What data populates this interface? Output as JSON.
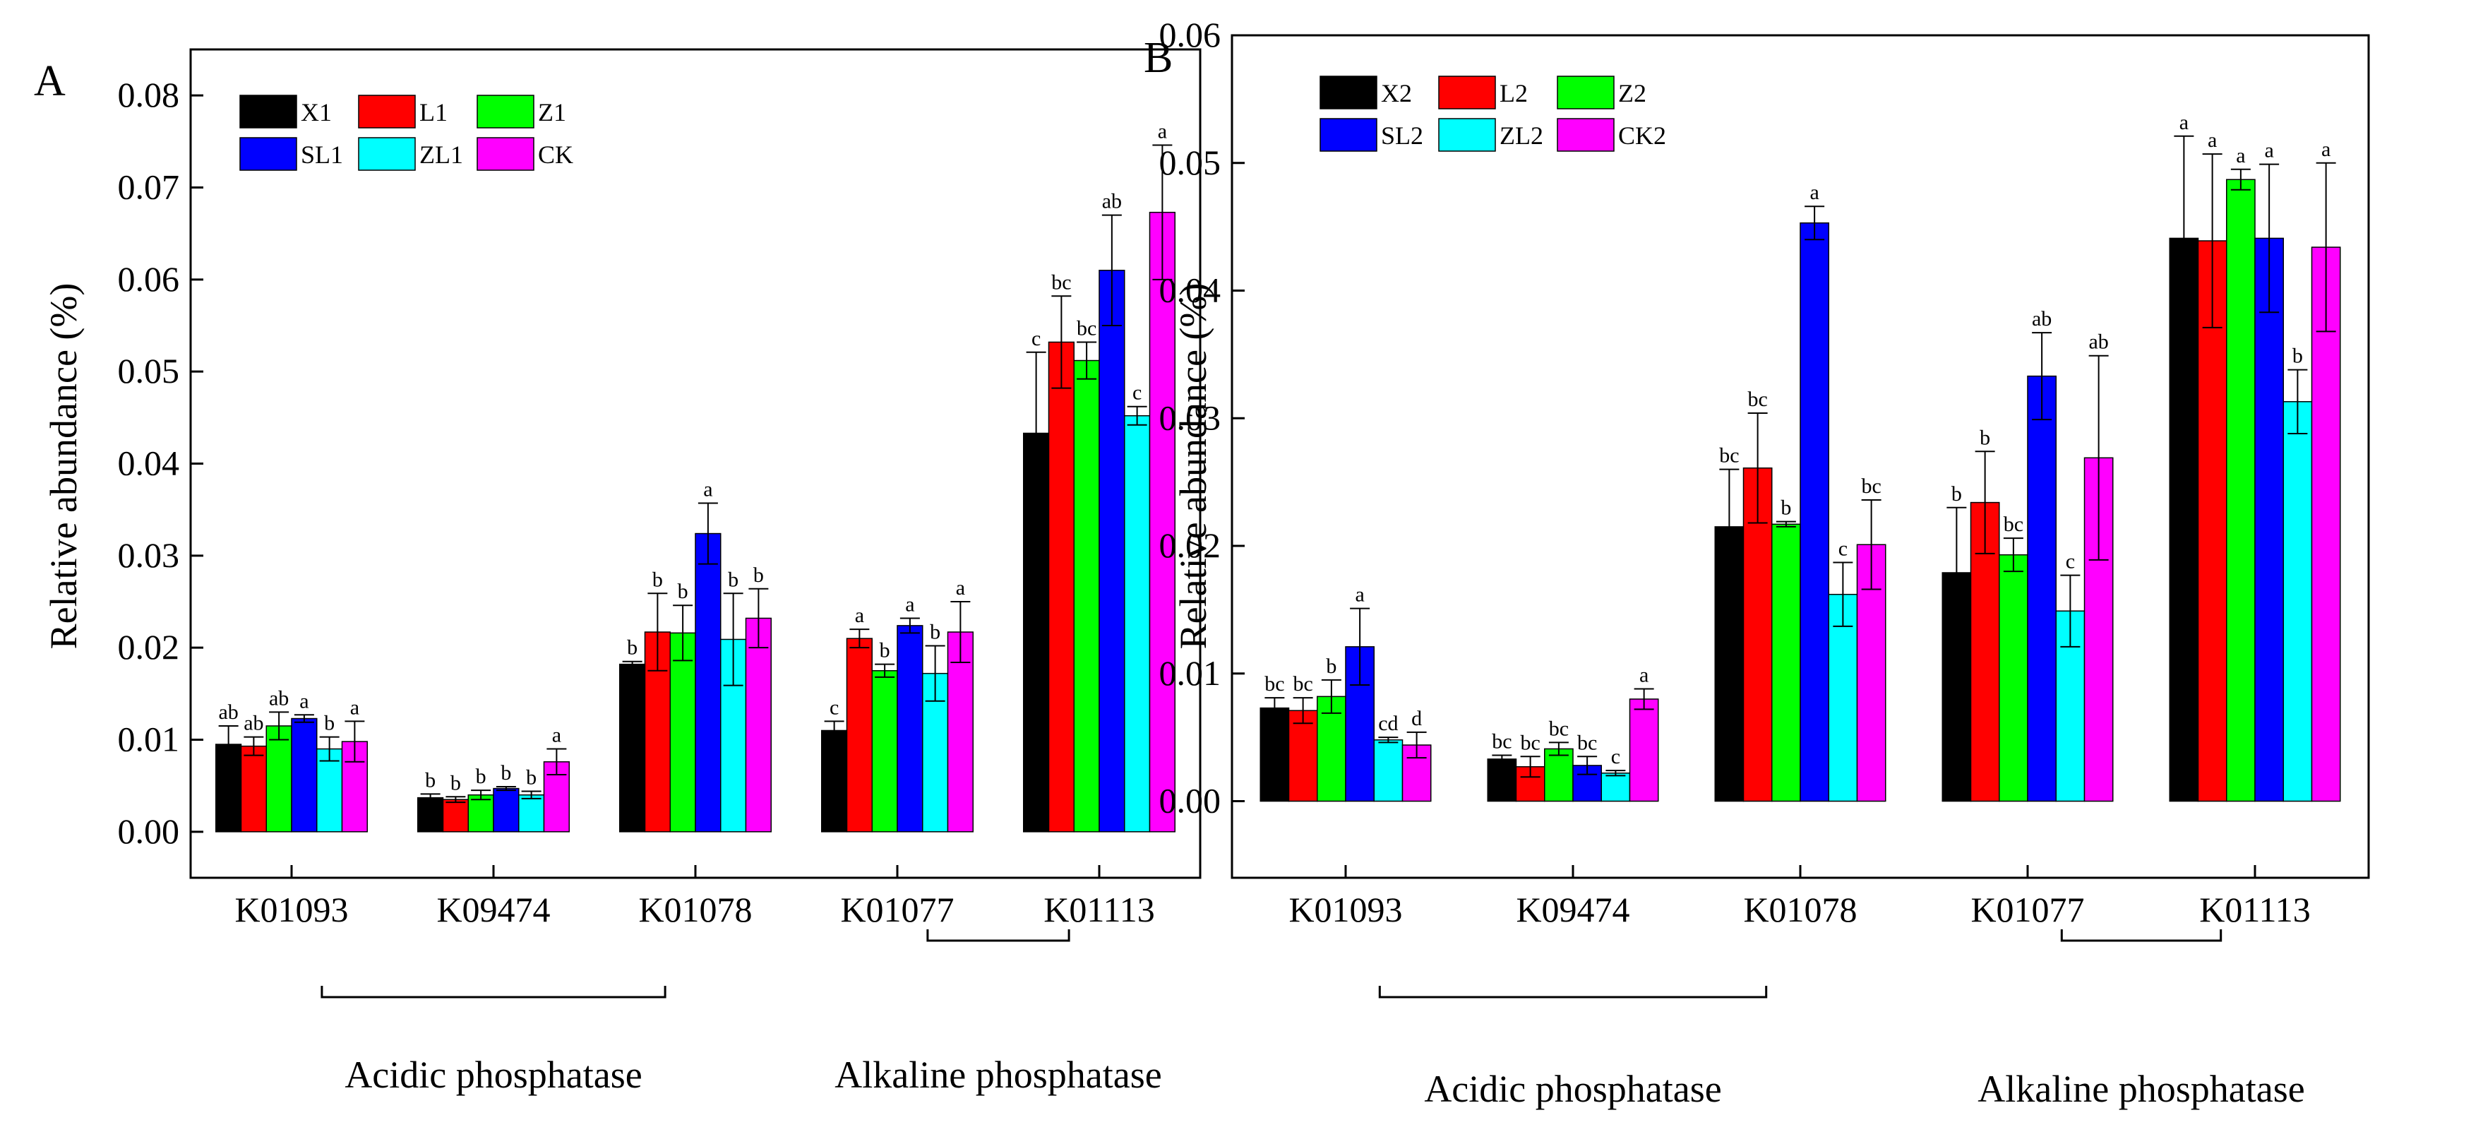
{
  "chart_data": [
    {
      "type": "bar",
      "panel": "A",
      "ylabel": "Relative abundance (%)",
      "ylim": [
        -0.005,
        0.085
      ],
      "yticks": [
        "0.00",
        "0.01",
        "0.02",
        "0.03",
        "0.04",
        "0.05",
        "0.06",
        "0.07",
        "0.08"
      ],
      "categories": [
        "K01093",
        "K09474",
        "K01078",
        "K01077",
        "K01113"
      ],
      "groups": [
        {
          "label": "Acidic phosphatase",
          "from": 0,
          "to": 2
        },
        {
          "label": "Alkaline phosphatase",
          "from": 3,
          "to": 4
        }
      ],
      "legend_position": "top-left",
      "series": [
        {
          "name": "X1",
          "color": "#000000",
          "values": [
            0.0095,
            0.0037,
            0.0182,
            0.011,
            0.0433
          ],
          "errors": [
            0.002,
            0.0004,
            0.0003,
            0.001,
            0.0088
          ],
          "labels": [
            "ab",
            "b",
            "b",
            "c",
            "c"
          ]
        },
        {
          "name": "L1",
          "color": "#ff0000",
          "values": [
            0.0093,
            0.0035,
            0.0217,
            0.021,
            0.0532
          ],
          "errors": [
            0.001,
            0.0003,
            0.0042,
            0.001,
            0.005
          ],
          "labels": [
            "ab",
            "b",
            "b",
            "a",
            "bc"
          ]
        },
        {
          "name": "Z1",
          "color": "#00ff00",
          "values": [
            0.0115,
            0.004,
            0.0216,
            0.0175,
            0.0512
          ],
          "errors": [
            0.0015,
            0.0005,
            0.003,
            0.0007,
            0.002
          ],
          "labels": [
            "ab",
            "b",
            "b",
            "b",
            "bc"
          ]
        },
        {
          "name": "SL1",
          "color": "#0000ff",
          "values": [
            0.0123,
            0.0047,
            0.0324,
            0.0224,
            0.061
          ],
          "errors": [
            0.0004,
            0.0002,
            0.0033,
            0.0008,
            0.006
          ],
          "labels": [
            "a",
            "b",
            "a",
            "a",
            "ab"
          ]
        },
        {
          "name": "ZL1",
          "color": "#00ffff",
          "values": [
            0.009,
            0.004,
            0.0209,
            0.0172,
            0.0452
          ],
          "errors": [
            0.0013,
            0.0004,
            0.005,
            0.003,
            0.001
          ],
          "labels": [
            "b",
            "b",
            "b",
            "b",
            "c"
          ]
        },
        {
          "name": "CK",
          "color": "#ff00ff",
          "values": [
            0.0098,
            0.0076,
            0.0232,
            0.0217,
            0.0673
          ],
          "errors": [
            0.0022,
            0.0014,
            0.0032,
            0.0033,
            0.0073
          ],
          "labels": [
            "a",
            "a",
            "b",
            "a",
            "a"
          ]
        }
      ]
    },
    {
      "type": "bar",
      "panel": "B",
      "ylabel": "Relative abundance (%)",
      "ylim": [
        -0.006,
        0.06
      ],
      "yticks": [
        "0.00",
        "0.01",
        "0.02",
        "0.03",
        "0.04",
        "0.05",
        "0.06"
      ],
      "categories": [
        "K01093",
        "K09474",
        "K01078",
        "K01077",
        "K01113"
      ],
      "groups": [
        {
          "label": "Acidic phosphatase",
          "from": 0,
          "to": 2
        },
        {
          "label": "Alkaline phosphatase",
          "from": 3,
          "to": 4
        }
      ],
      "legend_position": "top-left",
      "series": [
        {
          "name": "X2",
          "color": "#000000",
          "values": [
            0.0073,
            0.0033,
            0.0215,
            0.0179,
            0.0441
          ],
          "errors": [
            0.0008,
            0.0003,
            0.0045,
            0.0051,
            0.008
          ],
          "labels": [
            "bc",
            "bc",
            "bc",
            "b",
            "a"
          ]
        },
        {
          "name": "L2",
          "color": "#ff0000",
          "values": [
            0.0071,
            0.0027,
            0.0261,
            0.0234,
            0.0439
          ],
          "errors": [
            0.001,
            0.0008,
            0.0043,
            0.004,
            0.0068
          ],
          "labels": [
            "bc",
            "bc",
            "bc",
            "b",
            "a"
          ]
        },
        {
          "name": "Z2",
          "color": "#00ff00",
          "values": [
            0.0082,
            0.0041,
            0.0217,
            0.0193,
            0.0487
          ],
          "errors": [
            0.0013,
            0.0005,
            0.0002,
            0.0013,
            0.0008
          ],
          "labels": [
            "b",
            "bc",
            "b",
            "bc",
            "a"
          ]
        },
        {
          "name": "SL2",
          "color": "#0000ff",
          "values": [
            0.0121,
            0.0028,
            0.0453,
            0.0333,
            0.0441
          ],
          "errors": [
            0.003,
            0.0007,
            0.0013,
            0.0034,
            0.0058
          ],
          "labels": [
            "a",
            "bc",
            "a",
            "ab",
            "a"
          ]
        },
        {
          "name": "ZL2",
          "color": "#00ffff",
          "values": [
            0.0048,
            0.0022,
            0.0162,
            0.0149,
            0.0313
          ],
          "errors": [
            0.0002,
            0.0002,
            0.0025,
            0.0028,
            0.0025
          ],
          "labels": [
            "cd",
            "c",
            "c",
            "c",
            "b"
          ]
        },
        {
          "name": "CK2",
          "color": "#ff00ff",
          "values": [
            0.0044,
            0.008,
            0.0201,
            0.0269,
            0.0434
          ],
          "errors": [
            0.001,
            0.0008,
            0.0035,
            0.008,
            0.0066
          ],
          "labels": [
            "d",
            "a",
            "bc",
            "ab",
            "a"
          ]
        }
      ]
    }
  ]
}
